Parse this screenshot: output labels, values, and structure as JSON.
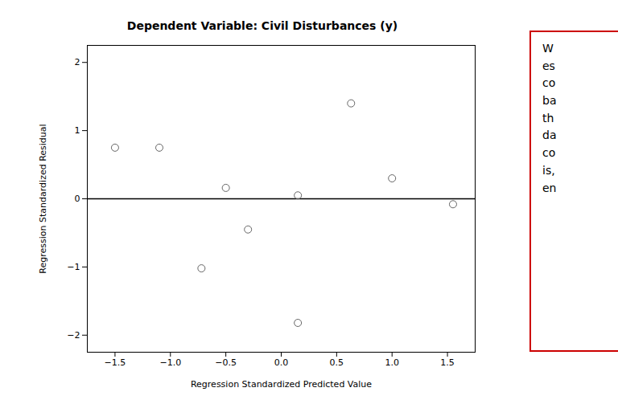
{
  "chart_data": {
    "type": "scatter",
    "title": "Dependent Variable: Civil Disturbances (y)",
    "xlabel": "Regression Standardized Predicted Value",
    "ylabel": "Regression Standardized Residual",
    "x": [
      -1.5,
      -1.1,
      -0.72,
      -0.5,
      -0.3,
      0.15,
      0.15,
      0.63,
      1.0,
      1.55
    ],
    "values": [
      0.75,
      0.75,
      -1.02,
      0.16,
      -0.45,
      -1.82,
      0.05,
      1.4,
      0.3,
      -0.08
    ],
    "color": "#666666",
    "marker": "circle",
    "xlim": [
      -1.75,
      1.75
    ],
    "ylim": [
      -2.25,
      2.25
    ],
    "xticks": [
      -1.5,
      {
        "value": -1,
        "label": "−1.0"
      },
      -0.5,
      {
        "value": 0,
        "label": "0.0"
      },
      0.5,
      {
        "value": 1,
        "label": "1.0"
      },
      1.5
    ],
    "yticks": [
      -2,
      -1,
      0,
      1,
      2
    ],
    "grid": false,
    "annotations": [
      {
        "type": "hline",
        "y": 0,
        "color": "black"
      },
      {
        "type": "text",
        "text": "W\nes\nco\nba\nth\nda\nco\nis,\nen",
        "color": "#cc0000"
      }
    ]
  }
}
